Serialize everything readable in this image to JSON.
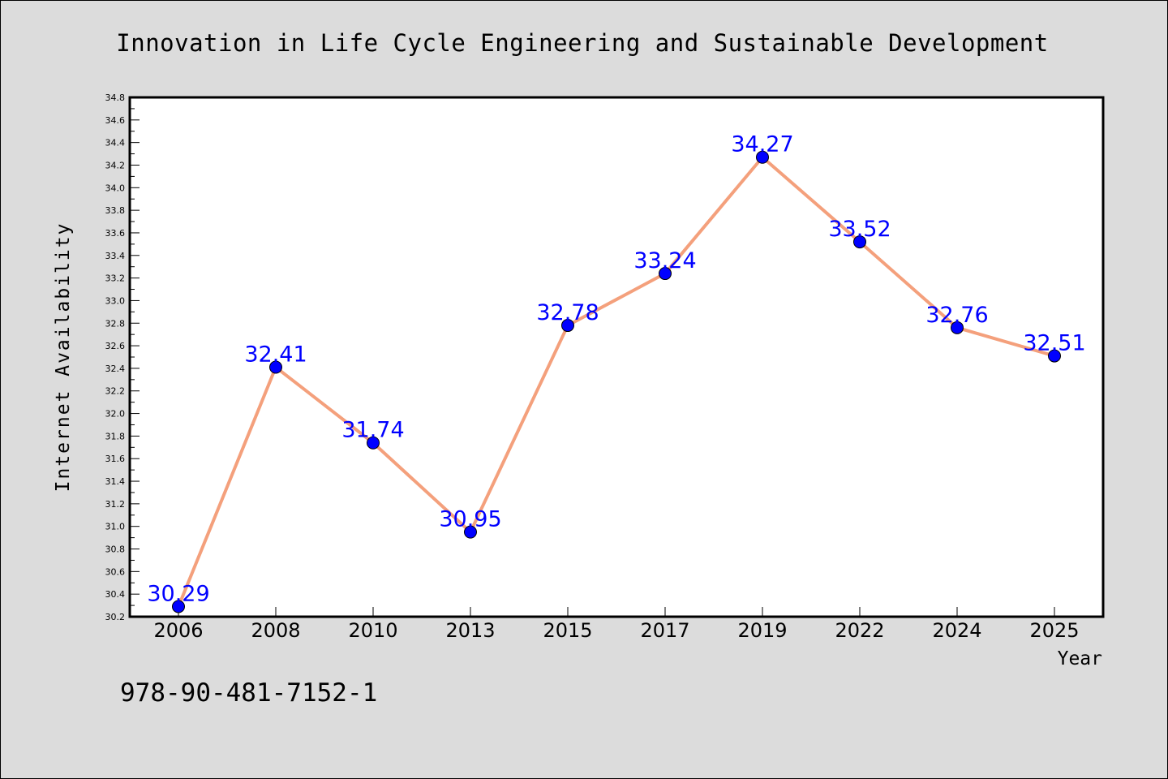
{
  "chart_data": {
    "type": "line",
    "title": "Innovation in Life Cycle Engineering and Sustainable Development",
    "xlabel": "Year",
    "ylabel": "Internet Availability",
    "categories": [
      "2006",
      "2008",
      "2010",
      "2013",
      "2015",
      "2017",
      "2019",
      "2022",
      "2024",
      "2025"
    ],
    "series": [
      {
        "values": [
          30.29,
          32.41,
          31.74,
          30.95,
          32.78,
          33.24,
          34.27,
          33.52,
          32.76,
          32.51
        ],
        "labels": [
          "30.29",
          "32.41",
          "31.74",
          "30.95",
          "32.78",
          "33.24",
          "34.27",
          "33.52",
          "32.76",
          "32.51"
        ]
      }
    ],
    "ylim": [
      30.2,
      34.8
    ],
    "yticks": [
      "30.2",
      "30.4",
      "30.6",
      "30.8",
      "31.0",
      "31.2",
      "31.4",
      "31.6",
      "31.8",
      "32.0",
      "32.2",
      "32.4",
      "32.6",
      "32.8",
      "33.0",
      "33.2",
      "33.4",
      "33.6",
      "33.8",
      "34.0",
      "34.2",
      "34.4",
      "34.6",
      "34.8"
    ],
    "grid": false,
    "legend": "none",
    "colors": {
      "line": "#f4a07c",
      "marker": "#0000ff",
      "data_label": "#0000ff",
      "background": "#dcdcdc",
      "plot_background": "#ffffff"
    }
  },
  "footer": {
    "isbn": "978-90-481-7152-1"
  }
}
